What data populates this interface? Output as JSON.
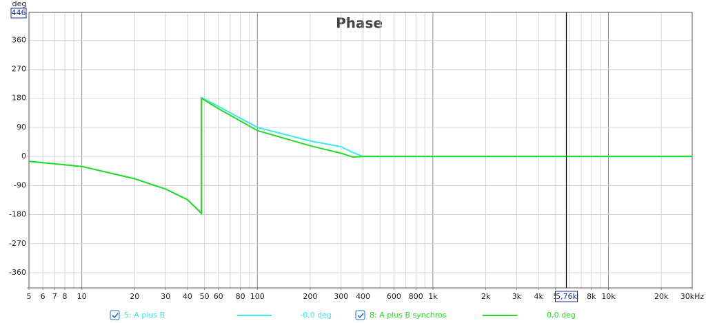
{
  "chart_data": {
    "type": "line",
    "title": "Phase",
    "ylabel": "deg",
    "log_x": true,
    "grid": true,
    "minor_grid": true,
    "xlim": [
      5,
      30000
    ],
    "ylim": [
      -407,
      446
    ],
    "xticks": [
      5,
      6,
      7,
      8,
      10,
      20,
      30,
      40,
      50,
      60,
      80,
      100,
      200,
      300,
      400,
      600,
      800,
      {
        "value": 1000,
        "label": "1k"
      },
      {
        "value": 2000,
        "label": "2k"
      },
      {
        "value": 3000,
        "label": "3k"
      },
      {
        "value": 4000,
        "label": "4k"
      },
      {
        "value": 5000,
        "label": "5"
      },
      {
        "value": 8000,
        "label": "8k"
      },
      {
        "value": 10000,
        "label": "10k"
      },
      {
        "value": 20000,
        "label": "20k"
      },
      {
        "value": 30000,
        "label": "30kHz"
      }
    ],
    "yticks": [
      360,
      270,
      180,
      90,
      0,
      -90,
      -180,
      -270,
      -360
    ],
    "cursor": {
      "value": 5760,
      "label": "5,76k"
    },
    "series": [
      {
        "name": "5: A plus B",
        "readout": "-0,0 deg",
        "color": "#3ee8e8",
        "x": [
          5,
          10,
          20,
          30,
          40,
          48,
          48,
          60,
          100,
          200,
          300,
          350,
          400,
          1000,
          10000,
          30000
        ],
        "values": [
          -15,
          -31,
          -69,
          -101,
          -134,
          -176,
          182,
          155,
          90,
          48,
          30,
          12,
          0,
          0,
          0,
          0
        ]
      },
      {
        "name": "8: A plus B synchros",
        "readout": "0,0 deg",
        "color": "#22dd22",
        "x": [
          5,
          10,
          20,
          30,
          40,
          48,
          48,
          60,
          100,
          200,
          300,
          350,
          400,
          1000,
          10000,
          30000
        ],
        "values": [
          -15,
          -31,
          -69,
          -101,
          -134,
          -176,
          180,
          148,
          80,
          33,
          10,
          -2,
          0,
          0,
          0,
          0
        ]
      }
    ]
  }
}
